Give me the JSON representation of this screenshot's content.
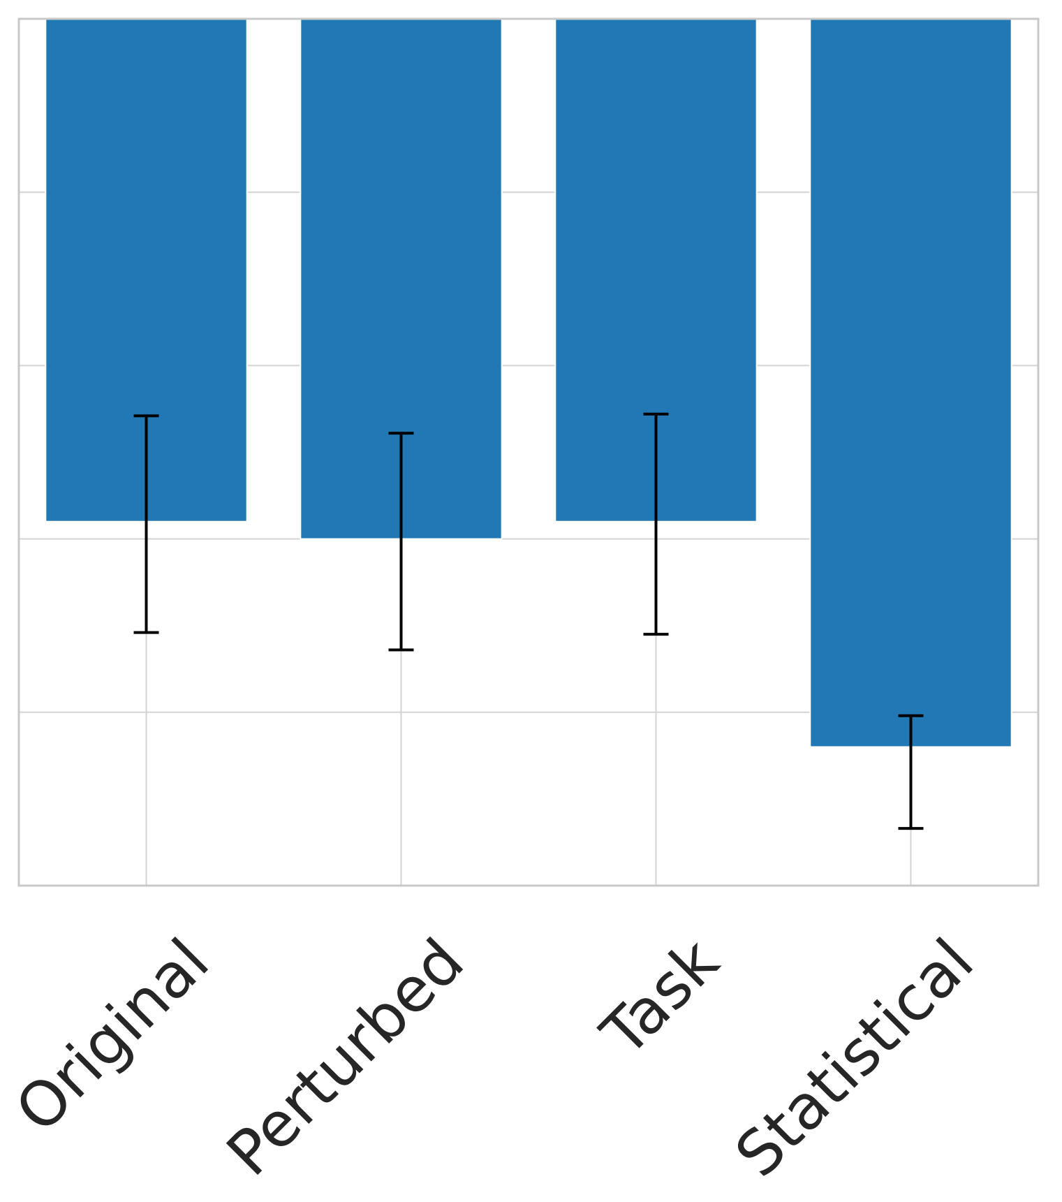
{
  "chart_data": {
    "type": "bar",
    "categories": [
      "Original",
      "Perturbed",
      "Task",
      "Statistical"
    ],
    "values": [
      2.1,
      2.0,
      2.1,
      0.8
    ],
    "errors": [
      {
        "low": 1.46,
        "high": 2.71
      },
      {
        "low": 1.36,
        "high": 2.61
      },
      {
        "low": 1.45,
        "high": 2.72
      },
      {
        "low": 0.33,
        "high": 0.98
      }
    ],
    "base": 5.0,
    "ylim": [
      0,
      5
    ],
    "ygrid": [
      1,
      2,
      3,
      4
    ],
    "title": "",
    "xlabel": "",
    "ylabel": "",
    "grid": true,
    "bar_color": "#2178b4",
    "error_color": "#000000",
    "grid_color": "#d4d4d4",
    "frame_color": "#c8c8c8",
    "label_color": "#262626"
  }
}
